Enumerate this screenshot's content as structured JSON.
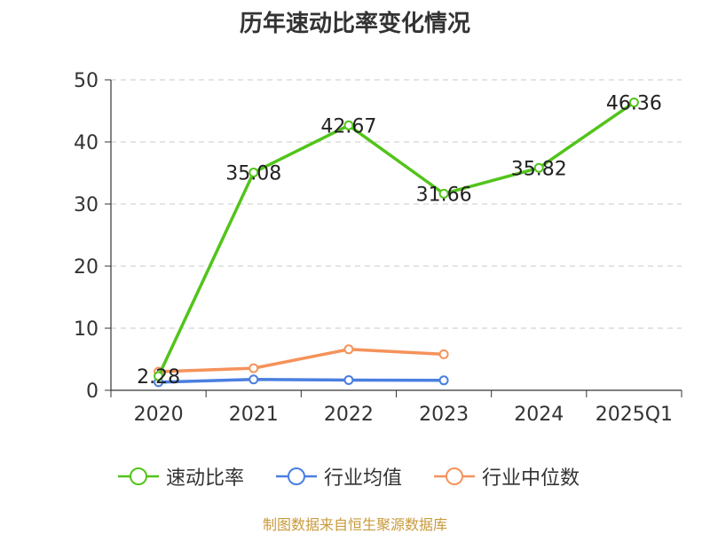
{
  "chart_data": {
    "type": "line",
    "title": "历年速动比率变化情况",
    "categories": [
      "2020",
      "2021",
      "2022",
      "2023",
      "2024",
      "2025Q1"
    ],
    "ylim": [
      0,
      50
    ],
    "yticks": [
      "0",
      "10",
      "20",
      "30",
      "40",
      "50"
    ],
    "grid": true,
    "legend_position": "bottom",
    "series": [
      {
        "name": "速动比率",
        "color": "#52c41a",
        "values": [
          2.28,
          35.08,
          42.67,
          31.66,
          35.82,
          46.36
        ],
        "labels": [
          "2.28",
          "35.08",
          "42.67",
          "31.66",
          "35.82",
          "46.36"
        ]
      },
      {
        "name": "行业均值",
        "color": "#4a7fe0",
        "values": [
          1.3,
          1.75,
          1.65,
          1.6,
          null,
          null
        ]
      },
      {
        "name": "行业中位数",
        "color": "#f5925a",
        "values": [
          3.0,
          3.55,
          6.6,
          5.8,
          null,
          null
        ]
      }
    ]
  },
  "footer": {
    "source": "制图数据来自恒生聚源数据库"
  }
}
